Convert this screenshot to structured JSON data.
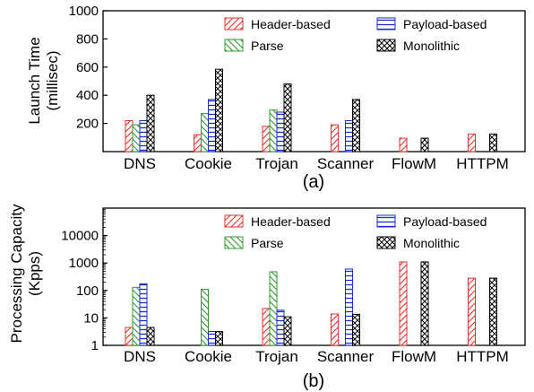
{
  "colors": {
    "header": "#e8322b",
    "parse": "#2e9a2e",
    "payload": "#1b2bd6",
    "mono": "#000000"
  },
  "chart_data": [
    {
      "type": "bar",
      "caption": "(a)",
      "ylabel_lines": [
        "Launch Time",
        "(millisec)"
      ],
      "yscale": "linear",
      "ylim": [
        0,
        1000
      ],
      "yticks": [
        200,
        400,
        600,
        800,
        1000
      ],
      "ytick_labels": [
        "200",
        "400",
        "600",
        "800",
        "1000"
      ],
      "categories": [
        "DNS",
        "Cookie",
        "Trojan",
        "Scanner",
        "FlowM",
        "HTTPM"
      ],
      "legend_position": "top-right",
      "series": [
        {
          "name": "Header-based",
          "key": "header",
          "hatch": "hatch-fwd",
          "values": [
            220,
            120,
            180,
            190,
            95,
            125
          ]
        },
        {
          "name": "Parse",
          "key": "parse",
          "hatch": "hatch-back",
          "values": [
            190,
            270,
            295,
            null,
            null,
            null
          ]
        },
        {
          "name": "Payload-based",
          "key": "payload",
          "hatch": "hatch-horiz",
          "values": [
            220,
            370,
            280,
            220,
            null,
            null
          ]
        },
        {
          "name": "Monolithic",
          "key": "mono",
          "hatch": "hatch-cross",
          "values": [
            400,
            585,
            480,
            370,
            95,
            125
          ]
        }
      ]
    },
    {
      "type": "bar",
      "caption": "(b)",
      "ylabel_lines": [
        "Processing Capacity",
        "(Kpps)"
      ],
      "yscale": "log",
      "ylim": [
        1,
        100000
      ],
      "yticks": [
        1,
        10,
        100,
        1000,
        10000
      ],
      "ytick_labels": [
        "1",
        "10",
        "100",
        "1000",
        "10000"
      ],
      "categories": [
        "DNS",
        "Cookie",
        "Trojan",
        "Scanner",
        "FlowM",
        "HTTPM"
      ],
      "legend_position": "top-right",
      "series": [
        {
          "name": "Header-based",
          "key": "header",
          "hatch": "hatch-fwd",
          "values": [
            4.5,
            1,
            22,
            14,
            1100,
            280
          ]
        },
        {
          "name": "Parse",
          "key": "parse",
          "hatch": "hatch-back",
          "values": [
            130,
            110,
            480,
            null,
            null,
            null
          ]
        },
        {
          "name": "Payload-based",
          "key": "payload",
          "hatch": "hatch-horiz",
          "values": [
            175,
            3.2,
            19,
            600,
            null,
            null
          ]
        },
        {
          "name": "Monolithic",
          "key": "mono",
          "hatch": "hatch-cross",
          "values": [
            4.5,
            3.2,
            11,
            13.5,
            1100,
            280
          ]
        }
      ]
    }
  ]
}
